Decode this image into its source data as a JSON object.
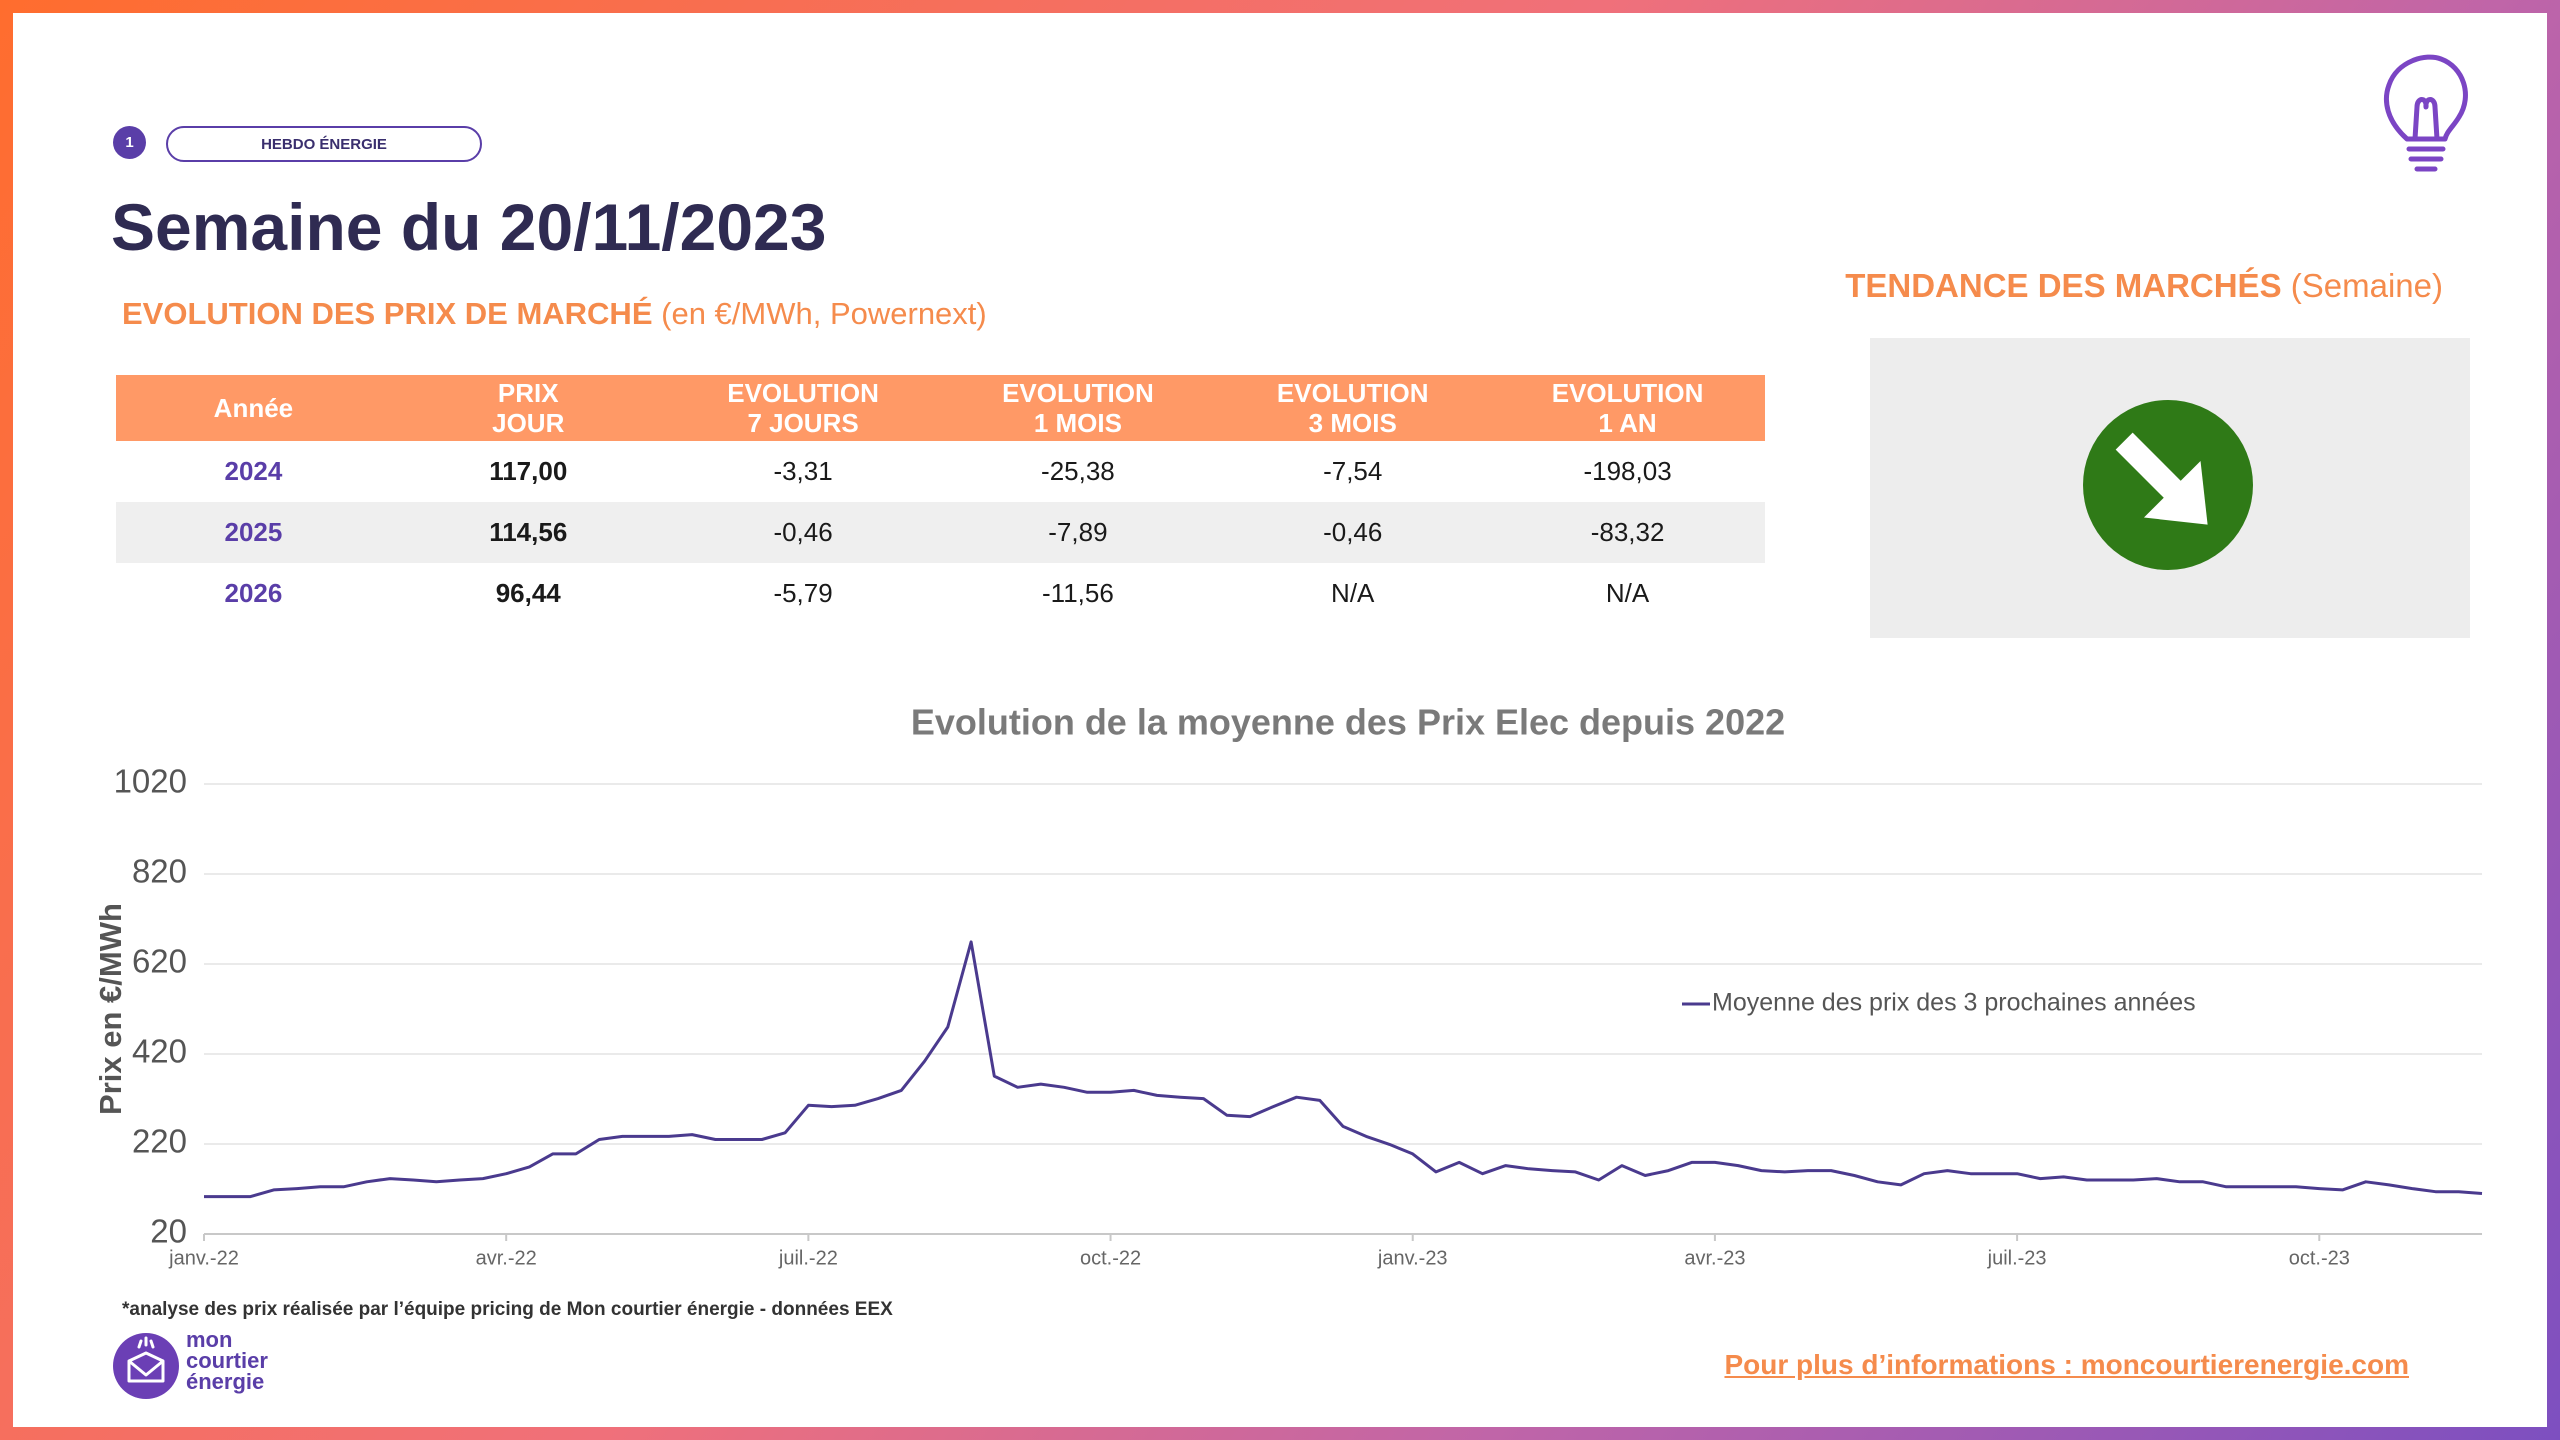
{
  "header": {
    "badge": "1",
    "tag": "HEBDO ÉNERGIE",
    "title": "Semaine du 20/11/2023"
  },
  "market_prices": {
    "title": "EVOLUTION DES PRIX DE MARCHÉ",
    "subtitle": "(en €/MWh, Powernext)",
    "table": {
      "columns": [
        [
          "Année"
        ],
        [
          "PRIX",
          "JOUR"
        ],
        [
          "EVOLUTION",
          "7 JOURS"
        ],
        [
          "EVOLUTION",
          "1 MOIS"
        ],
        [
          "EVOLUTION",
          "3 MOIS"
        ],
        [
          "EVOLUTION",
          "1 AN"
        ]
      ],
      "rows": [
        [
          "2024",
          "117,00",
          "-3,31",
          "-25,38",
          "-7,54",
          "-198,03"
        ],
        [
          "2025",
          "114,56",
          "-0,46",
          "-7,89",
          "-0,46",
          "-83,32"
        ],
        [
          "2026",
          "96,44",
          "-5,79",
          "-11,56",
          "N/A",
          "N/A"
        ]
      ]
    }
  },
  "trend": {
    "title": "TENDANCE DES MARCHÉS",
    "subtitle": "(Semaine)"
  },
  "chart_data": {
    "type": "line",
    "title": "Evolution de la moyenne des Prix Elec depuis 2022",
    "y_label": "Prix en €/MWh",
    "categories": [
      "janv.-22",
      null,
      null,
      null,
      null,
      null,
      null,
      null,
      null,
      null,
      null,
      null,
      null,
      "avr.-22",
      null,
      null,
      null,
      null,
      null,
      null,
      null,
      null,
      null,
      null,
      null,
      null,
      "juil.-22",
      null,
      null,
      null,
      null,
      null,
      null,
      null,
      null,
      null,
      null,
      null,
      null,
      "oct.-22",
      null,
      null,
      null,
      null,
      null,
      null,
      null,
      null,
      null,
      null,
      null,
      null,
      "janv.-23",
      null,
      null,
      null,
      null,
      null,
      null,
      null,
      null,
      null,
      null,
      null,
      null,
      "avr.-23",
      null,
      null,
      null,
      null,
      null,
      null,
      null,
      null,
      null,
      null,
      null,
      null,
      "juil.-23",
      null,
      null,
      null,
      null,
      null,
      null,
      null,
      null,
      null,
      null,
      null,
      null,
      "oct.-23",
      null,
      null,
      null,
      null,
      null,
      null,
      null
    ],
    "series": [
      {
        "name": "Moyenne des prix des 3 prochaines années",
        "color": "#4a3a8e",
        "values": [
          103,
          103,
          103,
          118,
          121,
          125,
          125,
          136,
          143,
          140,
          136,
          140,
          143,
          154,
          169,
          198,
          198,
          230,
          237,
          237,
          237,
          241,
          230,
          230,
          230,
          245,
          306,
          303,
          306,
          321,
          339,
          404,
          480,
          669,
          371,
          346,
          353,
          346,
          335,
          335,
          339,
          328,
          324,
          321,
          284,
          281,
          303,
          324,
          317,
          259,
          237,
          219,
          198,
          158,
          179,
          154,
          172,
          165,
          161,
          158,
          140,
          172,
          150,
          161,
          179,
          179,
          172,
          161,
          158,
          161,
          161,
          150,
          136,
          129,
          154,
          161,
          154,
          154,
          154,
          143,
          147,
          140,
          140,
          140,
          143,
          136,
          136,
          125,
          125,
          125,
          125,
          121,
          118,
          136,
          129,
          121,
          114,
          114,
          110
        ]
      }
    ],
    "ylim": [
      20,
      1020
    ],
    "yticks": [
      20,
      220,
      420,
      620,
      820,
      1020
    ],
    "grid": true
  },
  "footnote": "*analyse des prix réalisée par l’équipe pricing de Mon courtier énergie -  données EEX",
  "logo": {
    "lines": [
      "mon",
      "courtier",
      "énergie"
    ]
  },
  "link": "Pour plus d’informations : moncourtierenergie.com"
}
